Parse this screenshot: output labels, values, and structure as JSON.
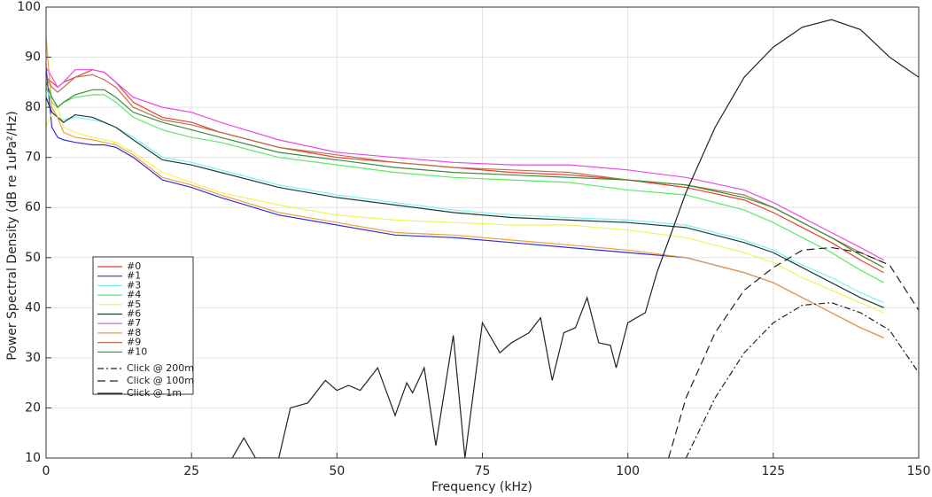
{
  "chart_data": {
    "type": "line",
    "xlabel": "Frequency (kHz)",
    "ylabel": "Power Spectral Density (dB re 1uPa²/Hz)",
    "x": [
      0,
      1,
      2,
      3,
      5,
      8,
      10,
      12,
      15,
      20,
      25,
      30,
      40,
      50,
      60,
      70,
      80,
      90,
      100,
      110,
      120,
      125,
      130,
      135,
      140,
      144
    ],
    "xlim": [
      0,
      150
    ],
    "ylim": [
      10,
      100
    ],
    "xticks": [
      0,
      25,
      50,
      75,
      100,
      125,
      150
    ],
    "yticks": [
      10,
      20,
      30,
      40,
      50,
      60,
      70,
      80,
      90,
      100
    ],
    "grid": true,
    "series": [
      {
        "name": "#0",
        "color": "#e8402a",
        "values": [
          86,
          85,
          84,
          85,
          86,
          87.5,
          87,
          85,
          81,
          78,
          77,
          75,
          72,
          70,
          69,
          68,
          67,
          66.5,
          65.5,
          64,
          61.5,
          59,
          56,
          53,
          49.5,
          47
        ]
      },
      {
        "name": "#1",
        "color": "#2f2fd9",
        "values": [
          88,
          76,
          74,
          73.5,
          73,
          72.5,
          72.5,
          72,
          70,
          65.5,
          64,
          62,
          58.5,
          56.5,
          54.5,
          54,
          53,
          52,
          51,
          50,
          47,
          45,
          42,
          39,
          36,
          34
        ]
      },
      {
        "name": "#3",
        "color": "#7ff0f0",
        "values": [
          82,
          79,
          78,
          77.5,
          78,
          77.5,
          77,
          76,
          74,
          70,
          69,
          67.5,
          64.5,
          62.5,
          61,
          59.5,
          58.5,
          58,
          57.5,
          56.5,
          53.5,
          51.5,
          48.5,
          46,
          43,
          41
        ]
      },
      {
        "name": "#4",
        "color": "#5ee85e",
        "values": [
          84,
          81,
          80,
          81,
          82,
          82.5,
          82.5,
          81,
          78,
          75.5,
          74,
          73,
          70,
          68.5,
          67,
          66,
          65.5,
          65,
          63.5,
          62.5,
          59.5,
          57,
          54,
          51,
          47.5,
          45
        ]
      },
      {
        "name": "#5",
        "color": "#f2f25a",
        "values": [
          76,
          79,
          80,
          76,
          75,
          74,
          73.5,
          73,
          71,
          67,
          65,
          63,
          60.5,
          58.5,
          57.5,
          57,
          56.5,
          56.5,
          55.5,
          54,
          51,
          49,
          46,
          43.5,
          41,
          39
        ]
      },
      {
        "name": "#6",
        "color": "#1a3a3a",
        "values": [
          82,
          79,
          78,
          77,
          78.5,
          78,
          77,
          76,
          73.5,
          69.5,
          68.5,
          67,
          64,
          62,
          60.5,
          59,
          58,
          57.5,
          57,
          56,
          53,
          51,
          48,
          45,
          42,
          40
        ]
      },
      {
        "name": "#7",
        "color": "#e84ae8",
        "values": [
          88,
          86,
          84,
          85,
          87.5,
          87.5,
          87,
          85,
          82,
          80,
          79,
          77,
          73.5,
          71,
          70,
          69,
          68.5,
          68.5,
          67.5,
          66,
          63.5,
          61,
          58,
          55,
          52,
          49.5
        ]
      },
      {
        "name": "#8",
        "color": "#f0a040",
        "values": [
          94,
          80,
          78,
          75,
          74,
          73.5,
          73,
          72.5,
          70.5,
          66,
          64.5,
          62.5,
          59,
          57,
          55,
          54.5,
          53.5,
          52.5,
          51.5,
          50,
          47,
          45,
          42,
          39,
          36,
          34
        ]
      },
      {
        "name": "#9",
        "color": "#b87050",
        "values": [
          86,
          84,
          83,
          84,
          86,
          86.5,
          85.5,
          84,
          80,
          77.5,
          76.5,
          75,
          72,
          70.5,
          69,
          68,
          67.5,
          67,
          65.5,
          64.5,
          62.5,
          60,
          57,
          54,
          51,
          49
        ]
      },
      {
        "name": "#10",
        "color": "#3c8a3c",
        "values": [
          85,
          82,
          80,
          81,
          82.5,
          83.5,
          83.5,
          82,
          79,
          77,
          75.5,
          74,
          71,
          69.5,
          68,
          67,
          66.5,
          66,
          65.5,
          64.5,
          62,
          60,
          57,
          54,
          50.5,
          48
        ]
      },
      {
        "name": "Click @ 200m",
        "color": "#222222",
        "dash": "dash-dot",
        "x": [
          110,
          115,
          120,
          125,
          130,
          135,
          140,
          145,
          150
        ],
        "values": [
          10,
          22,
          31,
          37,
          40.5,
          41,
          39,
          35.5,
          27
        ]
      },
      {
        "name": "Click @ 100m",
        "color": "#222222",
        "dash": "dash",
        "x": [
          107,
          110,
          115,
          120,
          125,
          130,
          135,
          140,
          145,
          150
        ],
        "values": [
          10,
          22,
          35,
          43.5,
          48,
          51.5,
          52,
          51,
          48.5,
          39.5
        ]
      },
      {
        "name": "Click @ 1m",
        "color": "#222222",
        "dash": "solid",
        "x": [
          32,
          34,
          36,
          40,
          42,
          45,
          48,
          50,
          52,
          54,
          57,
          60,
          62,
          63,
          65,
          67,
          70,
          72,
          75,
          78,
          80,
          83,
          85,
          87,
          89,
          91,
          93,
          95,
          97,
          98,
          100,
          103,
          105,
          110,
          115,
          120,
          125,
          130,
          135,
          140,
          145,
          150
        ],
        "values": [
          10,
          14,
          10,
          10,
          20,
          21,
          25.5,
          23.5,
          24.5,
          23.5,
          28,
          18.5,
          25,
          23,
          28,
          12.5,
          34.5,
          10,
          37,
          31,
          33,
          35,
          38,
          25.5,
          35,
          36,
          42,
          33,
          32.5,
          28,
          37,
          39,
          47,
          63,
          76,
          86,
          92,
          96,
          97.5,
          95.5,
          90,
          86
        ]
      }
    ]
  }
}
